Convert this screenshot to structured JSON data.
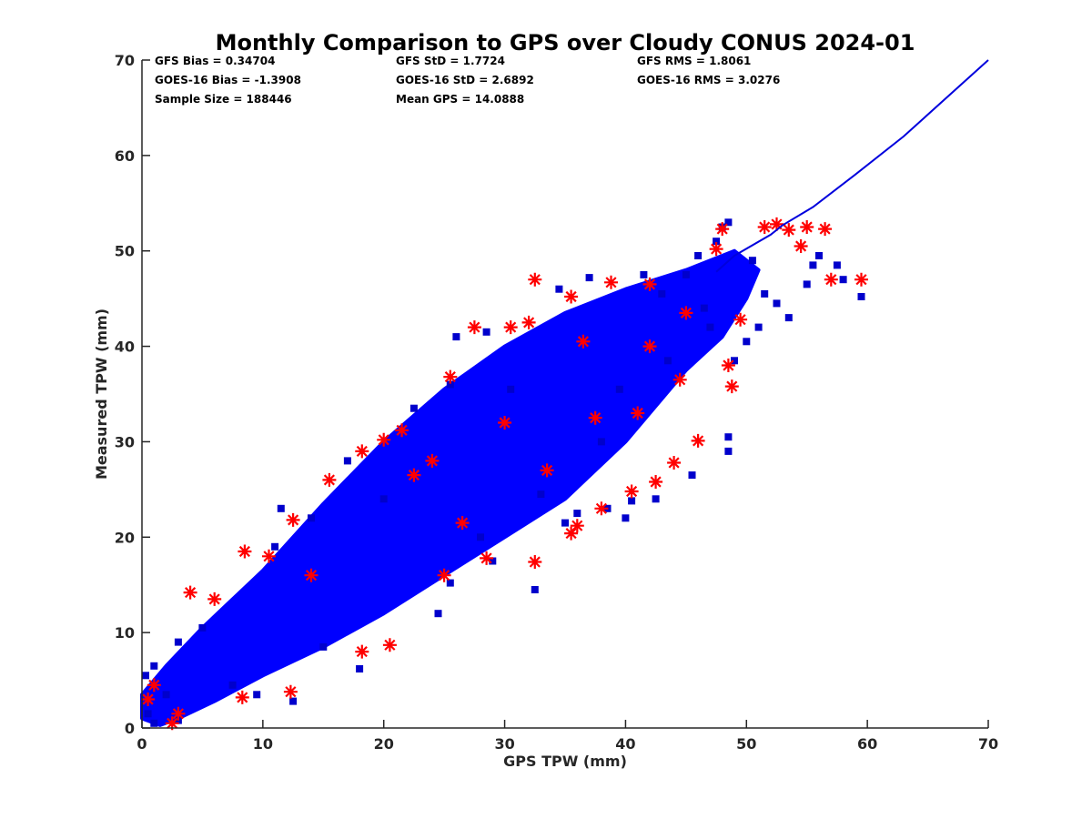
{
  "chart_data": {
    "type": "scatter",
    "title": "Monthly Comparison to GPS over Cloudy CONUS 2024-01",
    "xlabel": "GPS TPW (mm)",
    "ylabel": "Measured TPW (mm)",
    "xlim": [
      0,
      70
    ],
    "ylim": [
      0,
      70
    ],
    "x_ticks": [
      "0",
      "10",
      "20",
      "30",
      "40",
      "50",
      "60",
      "70"
    ],
    "y_ticks": [
      "0",
      "10",
      "20",
      "30",
      "40",
      "50",
      "60",
      "70"
    ],
    "grid": false,
    "legend": "none",
    "stats": [
      [
        "GFS Bias = 0.34704",
        "GFS StD = 1.7724",
        "GFS RMS = 1.8061"
      ],
      [
        "GOES-16 Bias = -1.3908",
        "GOES-16 StD = 2.6892",
        "GOES-16 RMS = 3.0276"
      ],
      [
        "Sample Size = 188446",
        "Mean GPS = 14.0888",
        ""
      ]
    ],
    "series": [
      {
        "marker": "asterisk",
        "color": "#ff0000",
        "points": [
          [
            4.0,
            14.2
          ],
          [
            6.0,
            13.5
          ],
          [
            8.5,
            18.5
          ],
          [
            10.5,
            18.0
          ],
          [
            12.5,
            21.8
          ],
          [
            15.5,
            26.0
          ],
          [
            18.2,
            29.0
          ],
          [
            20.0,
            30.2
          ],
          [
            21.5,
            31.2
          ],
          [
            25.5,
            36.8
          ],
          [
            27.5,
            42.0
          ],
          [
            30.5,
            42.0
          ],
          [
            32.0,
            42.5
          ],
          [
            32.5,
            47.0
          ],
          [
            35.5,
            45.2
          ],
          [
            38.8,
            46.7
          ],
          [
            42.0,
            46.5
          ],
          [
            47.5,
            50.2
          ],
          [
            48.0,
            52.3
          ],
          [
            51.5,
            52.5
          ],
          [
            52.5,
            52.8
          ],
          [
            53.5,
            52.2
          ],
          [
            54.5,
            50.5
          ],
          [
            55.0,
            52.5
          ],
          [
            56.5,
            52.3
          ],
          [
            57.0,
            47.0
          ],
          [
            59.5,
            47.0
          ],
          [
            48.5,
            38.0
          ],
          [
            48.8,
            35.8
          ],
          [
            46.0,
            30.1
          ],
          [
            44.0,
            27.8
          ],
          [
            42.5,
            25.8
          ],
          [
            40.5,
            24.8
          ],
          [
            38.0,
            23.0
          ],
          [
            36.0,
            21.2
          ],
          [
            35.5,
            20.4
          ],
          [
            32.5,
            17.4
          ],
          [
            28.5,
            17.8
          ],
          [
            25.0,
            16.0
          ],
          [
            12.3,
            3.8
          ],
          [
            8.3,
            3.2
          ],
          [
            18.2,
            8.0
          ],
          [
            20.5,
            8.7
          ],
          [
            2.5,
            0.5
          ],
          [
            0.5,
            3.0
          ],
          [
            1.0,
            4.5
          ],
          [
            3.0,
            1.5
          ],
          [
            49.5,
            42.8
          ],
          [
            45.0,
            43.5
          ],
          [
            41.0,
            33.0
          ],
          [
            30.0,
            32.0
          ],
          [
            24.0,
            28.0
          ],
          [
            14.0,
            16.0
          ],
          [
            26.5,
            21.5
          ],
          [
            33.5,
            27.0
          ],
          [
            37.5,
            32.5
          ],
          [
            44.5,
            36.5
          ],
          [
            22.5,
            26.5
          ],
          [
            36.5,
            40.5
          ],
          [
            42.0,
            40.0
          ]
        ]
      },
      {
        "marker": "square",
        "color": "#0000cc",
        "points": [
          [
            48.0,
            52.5
          ],
          [
            48.5,
            53.0
          ],
          [
            47.5,
            51.0
          ],
          [
            46.0,
            49.5
          ],
          [
            50.5,
            49.0
          ],
          [
            55.5,
            48.5
          ],
          [
            56.0,
            49.5
          ],
          [
            59.5,
            45.2
          ],
          [
            58.0,
            47.0
          ],
          [
            55.0,
            46.5
          ],
          [
            52.5,
            44.5
          ],
          [
            51.0,
            42.0
          ],
          [
            50.0,
            40.5
          ],
          [
            49.0,
            38.5
          ],
          [
            48.5,
            30.5
          ],
          [
            48.5,
            29.0
          ],
          [
            45.5,
            26.5
          ],
          [
            42.5,
            24.0
          ],
          [
            40.5,
            23.8
          ],
          [
            40.0,
            22.0
          ],
          [
            38.5,
            23.0
          ],
          [
            36.0,
            22.5
          ],
          [
            35.0,
            21.5
          ],
          [
            32.5,
            14.5
          ],
          [
            29.0,
            17.5
          ],
          [
            25.5,
            15.2
          ],
          [
            24.5,
            12.0
          ],
          [
            18.0,
            6.2
          ],
          [
            12.5,
            2.8
          ],
          [
            9.5,
            3.5
          ],
          [
            3.0,
            0.8
          ],
          [
            1.0,
            0.5
          ],
          [
            0.5,
            1.5
          ],
          [
            0.3,
            5.5
          ],
          [
            1.0,
            6.5
          ],
          [
            3.0,
            9.0
          ],
          [
            5.0,
            10.5
          ],
          [
            11.0,
            19.0
          ],
          [
            11.5,
            23.0
          ],
          [
            14.0,
            22.0
          ],
          [
            17.0,
            28.0
          ],
          [
            22.5,
            33.5
          ],
          [
            25.5,
            36.0
          ],
          [
            26.0,
            41.0
          ],
          [
            28.5,
            41.5
          ],
          [
            34.5,
            46.0
          ],
          [
            37.0,
            47.2
          ],
          [
            41.5,
            47.5
          ],
          [
            43.0,
            45.5
          ],
          [
            45.0,
            47.5
          ],
          [
            46.5,
            44.0
          ],
          [
            47.0,
            42.0
          ],
          [
            51.5,
            45.5
          ],
          [
            53.5,
            43.0
          ],
          [
            57.5,
            48.5
          ],
          [
            39.5,
            35.5
          ],
          [
            43.5,
            38.5
          ],
          [
            38.0,
            30.0
          ],
          [
            33.0,
            24.5
          ],
          [
            28.0,
            20.0
          ],
          [
            15.0,
            8.5
          ],
          [
            7.5,
            4.5
          ],
          [
            2.0,
            3.5
          ],
          [
            20.0,
            24.0
          ],
          [
            30.5,
            35.5
          ]
        ]
      }
    ],
    "density_band": {
      "color": "#0000ff",
      "upper_edge": [
        [
          0,
          3.5
        ],
        [
          2,
          6.5
        ],
        [
          5,
          10.5
        ],
        [
          10,
          16.5
        ],
        [
          15,
          23.5
        ],
        [
          20,
          30
        ],
        [
          25,
          35.5
        ],
        [
          30,
          40
        ],
        [
          35,
          43.5
        ],
        [
          40,
          46
        ],
        [
          45,
          48
        ],
        [
          49,
          50
        ],
        [
          51,
          48
        ],
        [
          50,
          45
        ]
      ],
      "lower_edge": [
        [
          50,
          45
        ],
        [
          48,
          41
        ],
        [
          45,
          37.5
        ],
        [
          40,
          30
        ],
        [
          35,
          24
        ],
        [
          30,
          20
        ],
        [
          25,
          16
        ],
        [
          20,
          12
        ],
        [
          15,
          8.5
        ],
        [
          10,
          5.5
        ],
        [
          6,
          2.8
        ],
        [
          3,
          1.0
        ],
        [
          1.5,
          0.3
        ],
        [
          0,
          1
        ]
      ]
    },
    "reference_line": {
      "color": "#0000dd",
      "points": [
        [
          47.5,
          47.8
        ],
        [
          49.0,
          49.5
        ],
        [
          52.0,
          51.7
        ],
        [
          53.0,
          52.7
        ],
        [
          55.5,
          54.6
        ],
        [
          59.0,
          58.0
        ],
        [
          63.0,
          62.0
        ],
        [
          70.0,
          70.0
        ]
      ]
    }
  }
}
